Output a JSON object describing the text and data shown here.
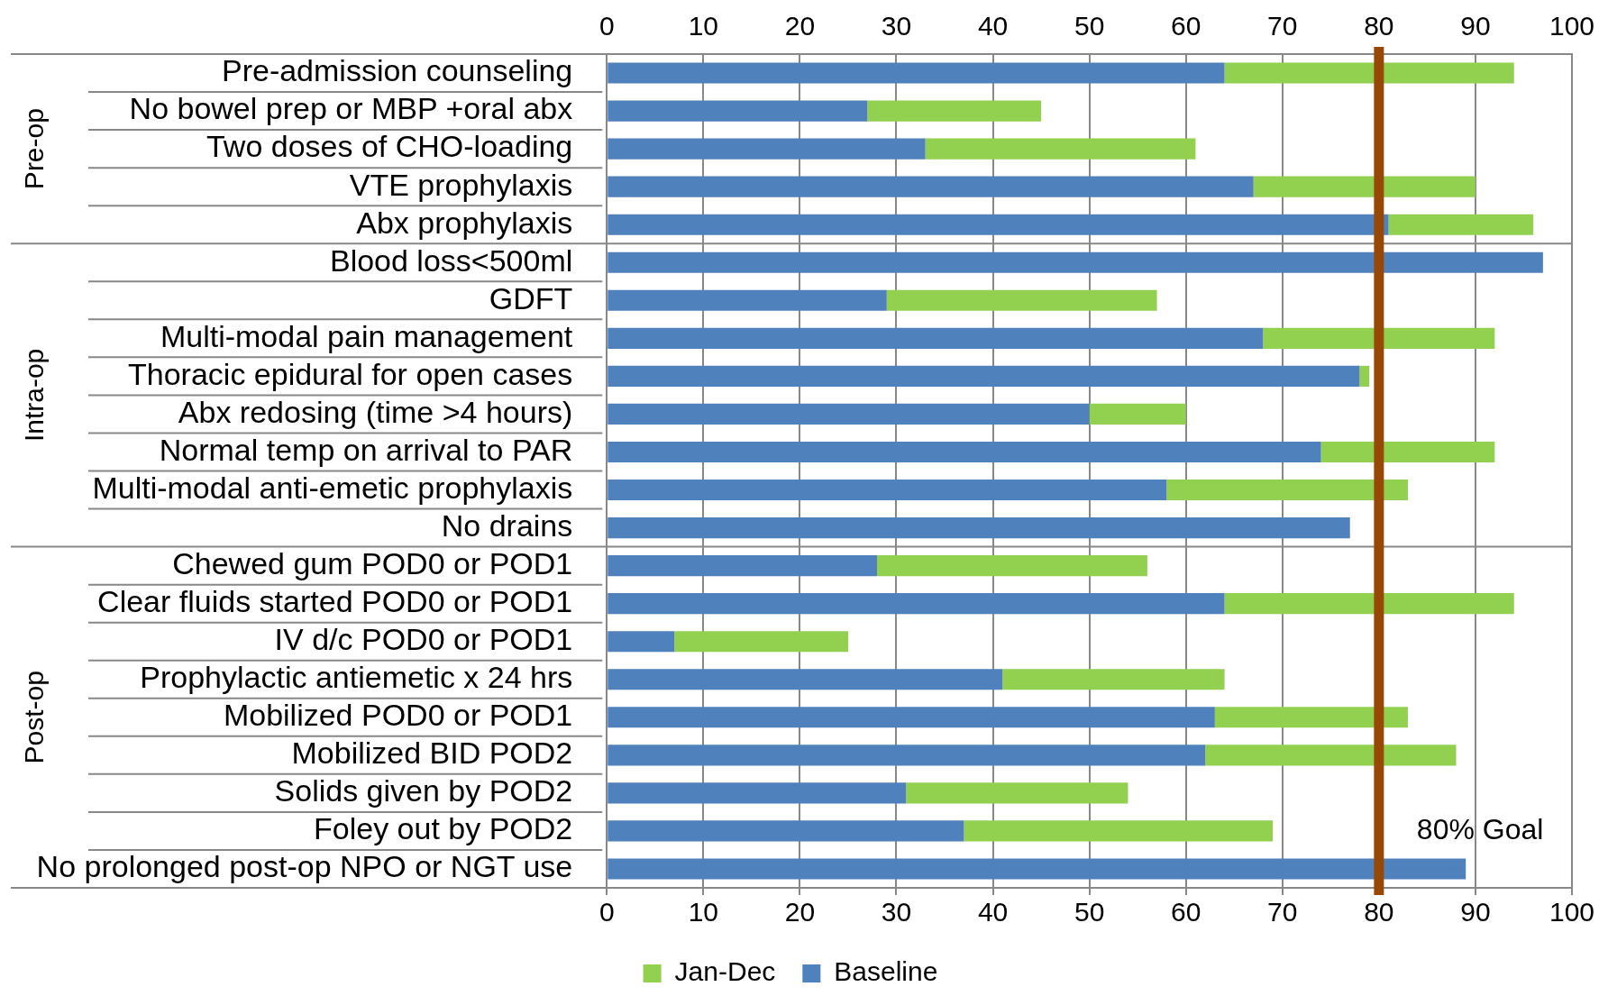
{
  "chart_data": {
    "type": "bar",
    "orientation": "horizontal",
    "stacked": true,
    "categories": [
      "Pre-admission counseling",
      "No bowel prep or MBP +oral abx",
      "Two doses of CHO-loading",
      "VTE prophylaxis",
      "Abx prophylaxis",
      "Blood loss<500ml",
      "GDFT",
      "Multi-modal pain management",
      "Thoracic epidural for open cases",
      "Abx redosing (time >4 hours)",
      "Normal temp on arrival to PAR",
      "Multi-modal anti-emetic prophylaxis",
      "No drains",
      "Chewed gum POD0 or POD1",
      "Clear fluids started POD0 or POD1",
      "IV d/c POD0 or POD1",
      "Prophylactic antiemetic x 24 hrs",
      "Mobilized POD0 or POD1",
      "Mobilized BID POD2",
      "Solids given by POD2",
      "Foley out by POD2",
      "No prolonged post-op NPO or NGT use"
    ],
    "series": [
      {
        "name": "Baseline",
        "color": "#4f81bd",
        "values": [
          64,
          27,
          33,
          67,
          81,
          97,
          29,
          68,
          78,
          50,
          74,
          58,
          77,
          28,
          64,
          7,
          41,
          63,
          62,
          31,
          37,
          89
        ]
      },
      {
        "name": "Jan-Dec",
        "color": "#92d050",
        "values": [
          30,
          18,
          28,
          23,
          15,
          0,
          28,
          24,
          1,
          10,
          18,
          25,
          0,
          28,
          30,
          18,
          23,
          20,
          26,
          23,
          32,
          0
        ]
      }
    ],
    "xlim": [
      0,
      100
    ],
    "xticks": [
      0,
      10,
      20,
      30,
      40,
      50,
      60,
      70,
      80,
      90,
      100
    ],
    "x2lim": [
      0,
      100
    ],
    "x2ticks": [
      0,
      10,
      20,
      30,
      40,
      50,
      60,
      70,
      80,
      90,
      100
    ],
    "grid": "x",
    "legend": "bottom",
    "ref_lines": [
      {
        "axis": "x",
        "value": 80,
        "label": "80% Goal",
        "color": "#974806"
      }
    ],
    "annotations": [
      "Pre-op",
      "Intra-op",
      "Post-op"
    ]
  }
}
